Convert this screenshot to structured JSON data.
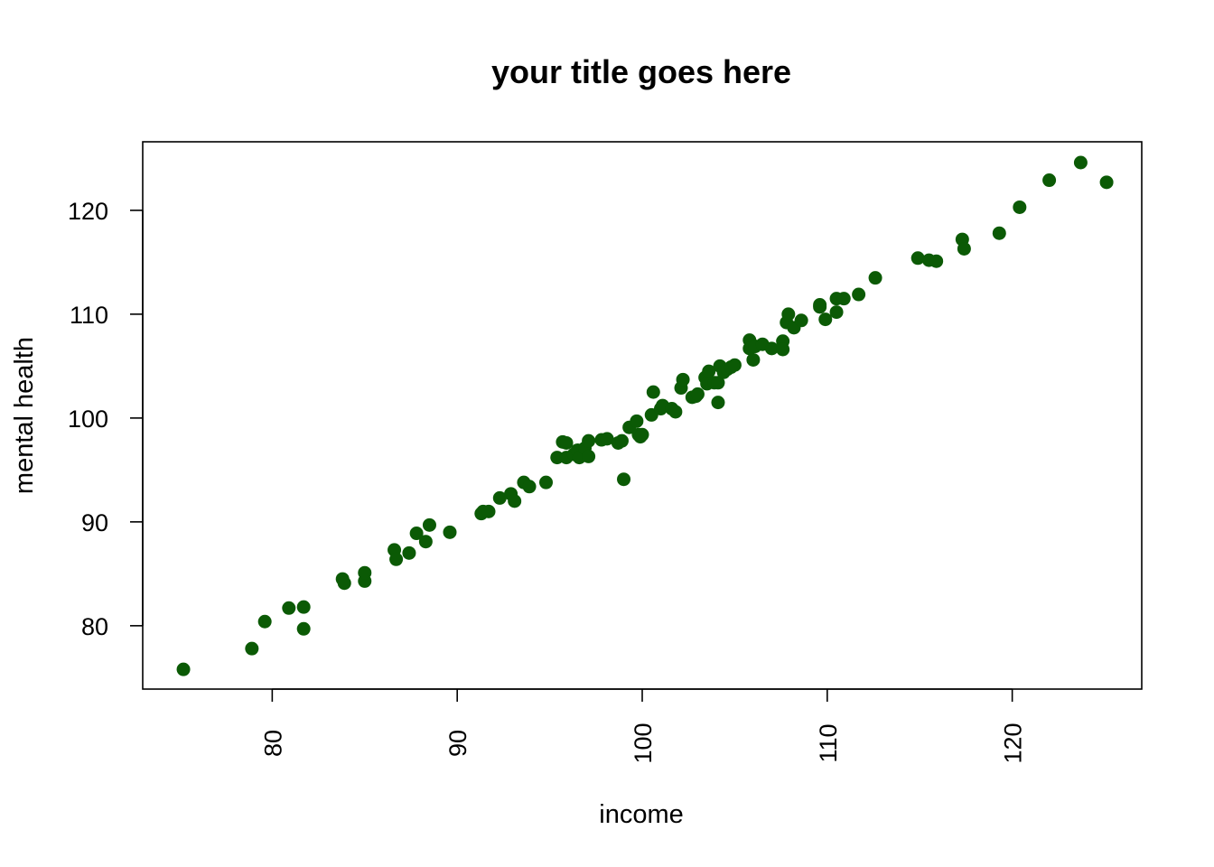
{
  "chart_data": {
    "type": "scatter",
    "title": "your title goes here",
    "xlabel": "income",
    "ylabel": "mental health",
    "xlim": [
      73,
      127
    ],
    "ylim": [
      73.9,
      126.6
    ],
    "x_ticks": [
      80,
      90,
      100,
      110,
      120
    ],
    "y_ticks": [
      80,
      90,
      100,
      110,
      120
    ],
    "x_tick_labels": [
      "80",
      "90",
      "100",
      "110",
      "120"
    ],
    "y_tick_labels": [
      "80",
      "90",
      "100",
      "110",
      "120"
    ],
    "point_color": "#0b5a05",
    "grid": false,
    "legend": "none",
    "points": [
      [
        75.2,
        75.8
      ],
      [
        78.9,
        77.8
      ],
      [
        79.6,
        80.4
      ],
      [
        80.9,
        81.7
      ],
      [
        81.7,
        81.8
      ],
      [
        81.7,
        79.7
      ],
      [
        83.8,
        84.5
      ],
      [
        83.9,
        84.1
      ],
      [
        85.0,
        84.3
      ],
      [
        85.0,
        85.1
      ],
      [
        86.6,
        87.3
      ],
      [
        86.7,
        86.4
      ],
      [
        87.4,
        87.0
      ],
      [
        87.8,
        88.9
      ],
      [
        88.3,
        88.1
      ],
      [
        88.5,
        89.7
      ],
      [
        89.6,
        89.0
      ],
      [
        91.3,
        90.8
      ],
      [
        91.4,
        91.0
      ],
      [
        91.7,
        91.0
      ],
      [
        92.3,
        92.3
      ],
      [
        92.9,
        92.7
      ],
      [
        93.1,
        92.0
      ],
      [
        93.6,
        93.8
      ],
      [
        93.9,
        93.4
      ],
      [
        94.8,
        93.8
      ],
      [
        95.4,
        96.2
      ],
      [
        95.7,
        97.7
      ],
      [
        95.9,
        97.6
      ],
      [
        95.9,
        96.2
      ],
      [
        96.3,
        96.5
      ],
      [
        96.5,
        96.9
      ],
      [
        96.6,
        96.2
      ],
      [
        96.9,
        97.1
      ],
      [
        97.1,
        97.8
      ],
      [
        97.1,
        96.3
      ],
      [
        97.8,
        97.9
      ],
      [
        98.1,
        98.0
      ],
      [
        98.7,
        97.6
      ],
      [
        98.9,
        97.8
      ],
      [
        99.0,
        94.1
      ],
      [
        99.3,
        99.1
      ],
      [
        99.7,
        99.7
      ],
      [
        99.8,
        98.4
      ],
      [
        99.9,
        98.2
      ],
      [
        100.0,
        98.4
      ],
      [
        100.5,
        100.3
      ],
      [
        100.6,
        102.5
      ],
      [
        101.0,
        100.9
      ],
      [
        101.1,
        101.2
      ],
      [
        101.6,
        100.9
      ],
      [
        101.8,
        100.6
      ],
      [
        102.1,
        102.9
      ],
      [
        102.2,
        103.7
      ],
      [
        102.7,
        102.0
      ],
      [
        102.9,
        102.1
      ],
      [
        103.0,
        102.3
      ],
      [
        103.4,
        103.9
      ],
      [
        103.5,
        103.3
      ],
      [
        103.6,
        104.5
      ],
      [
        103.9,
        103.4
      ],
      [
        104.1,
        103.4
      ],
      [
        104.1,
        101.5
      ],
      [
        104.2,
        105.0
      ],
      [
        104.4,
        104.4
      ],
      [
        104.6,
        104.7
      ],
      [
        104.8,
        104.9
      ],
      [
        105.0,
        105.1
      ],
      [
        105.8,
        107.5
      ],
      [
        105.8,
        106.7
      ],
      [
        106.0,
        105.6
      ],
      [
        106.1,
        106.9
      ],
      [
        106.5,
        107.1
      ],
      [
        107.0,
        106.7
      ],
      [
        107.6,
        107.4
      ],
      [
        107.6,
        106.6
      ],
      [
        107.8,
        109.2
      ],
      [
        107.9,
        110.0
      ],
      [
        108.2,
        108.7
      ],
      [
        108.6,
        109.4
      ],
      [
        109.6,
        110.7
      ],
      [
        109.6,
        110.9
      ],
      [
        109.9,
        109.5
      ],
      [
        110.5,
        110.2
      ],
      [
        110.5,
        111.5
      ],
      [
        110.9,
        111.5
      ],
      [
        111.7,
        111.9
      ],
      [
        112.6,
        113.5
      ],
      [
        114.9,
        115.4
      ],
      [
        115.5,
        115.2
      ],
      [
        115.9,
        115.1
      ],
      [
        117.3,
        117.2
      ],
      [
        117.4,
        116.3
      ],
      [
        119.3,
        117.8
      ],
      [
        120.4,
        120.3
      ],
      [
        122.0,
        122.9
      ],
      [
        123.7,
        124.6
      ],
      [
        125.1,
        122.7
      ]
    ]
  }
}
